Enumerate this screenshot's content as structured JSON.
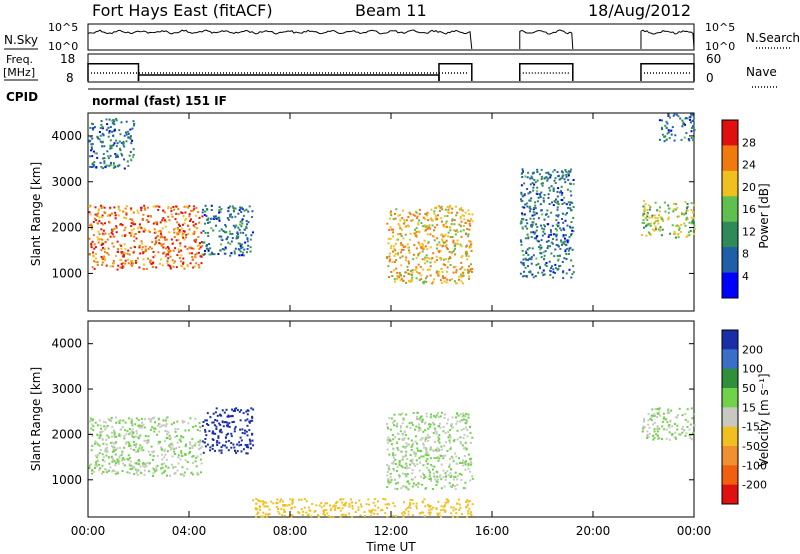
{
  "header": {
    "title": "Fort Hays East (fitACF)",
    "beam": "Beam 11",
    "date": "18/Aug/2012"
  },
  "noise_panel": {
    "left_label": "N.Sky",
    "right_label": "N.Search",
    "left_ticks": [
      "10^5",
      "10^0"
    ],
    "right_ticks": [
      "10^5",
      "10^0"
    ]
  },
  "freq_panel": {
    "left_label_line1": "Freq.",
    "left_label_line2": "[MHz]",
    "right_label": "Nave",
    "left_ticks": [
      "18",
      "8"
    ],
    "right_ticks": [
      "60",
      "0"
    ]
  },
  "cpid_panel": {
    "label": "CPID",
    "text": "normal (fast) 151 IF"
  },
  "x_axis": {
    "label": "Time UT",
    "ticks": [
      "00:00",
      "04:00",
      "08:00",
      "12:00",
      "16:00",
      "20:00",
      "00:00"
    ]
  },
  "power_panel": {
    "ylabel": "Slant Range [km]",
    "yticks": [
      "1000",
      "2000",
      "3000",
      "4000"
    ],
    "colorbar_label": "Power [dB]",
    "colorbar_ticks": [
      "4",
      "8",
      "12",
      "16",
      "20",
      "24",
      "28"
    ],
    "colors": [
      "#0000ff",
      "#1f5fa8",
      "#2e8b57",
      "#5fbf4f",
      "#f0c020",
      "#f07a10",
      "#e01010"
    ]
  },
  "velocity_panel": {
    "ylabel": "Slant Range [km]",
    "yticks": [
      "1000",
      "2000",
      "3000",
      "4000"
    ],
    "colorbar_label": "Velocity [m s⁻¹]",
    "colorbar_ticks": [
      "200",
      "100",
      "50",
      "15",
      "-15",
      "-50",
      "-100",
      "-200"
    ],
    "colors": [
      "#1a2ea8",
      "#3a6fc8",
      "#2f8f3a",
      "#6fd24a",
      "#c8c8c0",
      "#f0c020",
      "#f09030",
      "#f06010",
      "#e01010"
    ]
  },
  "chart_data": {
    "type": "heatmap",
    "x_range_hours": [
      0,
      24
    ],
    "y_range_km": [
      180,
      4500
    ],
    "operating_periods_ut_hours": [
      [
        0,
        15.2
      ],
      [
        17.1,
        19.2
      ],
      [
        21.9,
        24
      ]
    ],
    "frequency_mhz_segments": [
      {
        "start": 0,
        "end": 2.0,
        "freq": 14.5
      },
      {
        "start": 2.0,
        "end": 13.9,
        "freq": 10.5
      },
      {
        "start": 13.9,
        "end": 15.2,
        "freq": 14.5
      },
      {
        "start": 17.1,
        "end": 19.2,
        "freq": 14.5
      },
      {
        "start": 21.9,
        "end": 24,
        "freq": 14.5
      }
    ],
    "power_features": [
      {
        "start_ut": 0.0,
        "end_ut": 4.5,
        "range_km": [
          1100,
          2500
        ],
        "power_db": 24
      },
      {
        "start_ut": 4.5,
        "end_ut": 6.5,
        "range_km": [
          1400,
          2500
        ],
        "power_db": 8
      },
      {
        "start_ut": 11.8,
        "end_ut": 15.2,
        "range_km": [
          800,
          2500
        ],
        "power_db": 20
      },
      {
        "start_ut": 17.1,
        "end_ut": 19.2,
        "range_km": [
          900,
          3300
        ],
        "power_db": 8
      },
      {
        "start_ut": 21.9,
        "end_ut": 24.0,
        "range_km": [
          1800,
          2600
        ],
        "power_db": 16
      },
      {
        "start_ut": 0.0,
        "end_ut": 1.8,
        "range_km": [
          3300,
          4400
        ],
        "power_db": 8
      },
      {
        "start_ut": 22.6,
        "end_ut": 24.0,
        "range_km": [
          3900,
          4500
        ],
        "power_db": 8
      }
    ],
    "velocity_features": [
      {
        "start_ut": 0.0,
        "end_ut": 4.5,
        "range_km": [
          1100,
          2400
        ],
        "velocity_ms": 0
      },
      {
        "start_ut": 4.5,
        "end_ut": 6.5,
        "range_km": [
          1600,
          2600
        ],
        "velocity_ms": 200
      },
      {
        "start_ut": 6.5,
        "end_ut": 15.2,
        "range_km": [
          200,
          600
        ],
        "velocity_ms": -50
      },
      {
        "start_ut": 11.8,
        "end_ut": 15.2,
        "range_km": [
          800,
          2500
        ],
        "velocity_ms": 0
      },
      {
        "start_ut": 21.9,
        "end_ut": 24.0,
        "range_km": [
          1900,
          2600
        ],
        "velocity_ms": 0
      }
    ]
  }
}
